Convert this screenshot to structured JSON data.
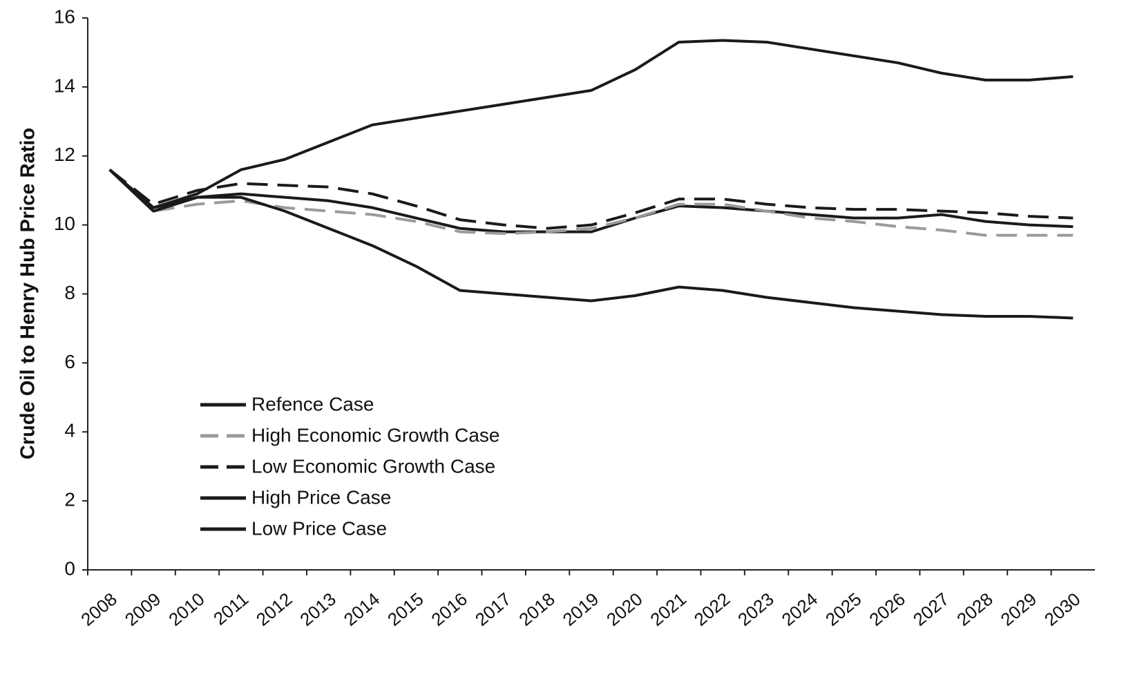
{
  "chart_data": {
    "type": "line",
    "y_label": "Crude Oil to Henry Hub Price Ratio",
    "categories": [
      "2008",
      "2009",
      "2010",
      "2011",
      "2012",
      "2013",
      "2014",
      "2015",
      "2016",
      "2017",
      "2018",
      "2019",
      "2020",
      "2021",
      "2022",
      "2023",
      "2024",
      "2025",
      "2026",
      "2027",
      "2028",
      "2029",
      "2030"
    ],
    "series": [
      {
        "name": "Refence Case",
        "color": "#1a1a1a",
        "dash": false,
        "values": [
          11.6,
          10.5,
          10.8,
          10.9,
          10.8,
          10.7,
          10.5,
          10.2,
          9.9,
          9.8,
          9.8,
          9.8,
          10.2,
          10.55,
          10.5,
          10.4,
          10.3,
          10.2,
          10.2,
          10.3,
          10.1,
          10.0,
          9.95
        ]
      },
      {
        "name": "High Economic Growth Case",
        "color": "#9a9a9a",
        "dash": true,
        "values": [
          11.6,
          10.4,
          10.6,
          10.7,
          10.5,
          10.4,
          10.3,
          10.1,
          9.8,
          9.75,
          9.8,
          9.9,
          10.2,
          10.6,
          10.6,
          10.4,
          10.2,
          10.1,
          9.95,
          9.85,
          9.7,
          9.7,
          9.7
        ]
      },
      {
        "name": "Low Economic Growth Case",
        "color": "#1a1a1a",
        "dash": true,
        "values": [
          11.6,
          10.6,
          11.0,
          11.2,
          11.15,
          11.1,
          10.9,
          10.55,
          10.15,
          10.0,
          9.9,
          10.0,
          10.35,
          10.75,
          10.75,
          10.6,
          10.5,
          10.45,
          10.45,
          10.4,
          10.35,
          10.25,
          10.2
        ]
      },
      {
        "name": "High Price Case",
        "color": "#1a1a1a",
        "dash": false,
        "values": [
          11.6,
          10.5,
          10.9,
          11.6,
          11.9,
          12.4,
          12.9,
          13.1,
          13.3,
          13.5,
          13.7,
          13.9,
          14.5,
          15.3,
          15.35,
          15.3,
          15.1,
          14.9,
          14.7,
          14.4,
          14.2,
          14.2,
          14.3
        ]
      },
      {
        "name": "Low Price Case",
        "color": "#1a1a1a",
        "dash": false,
        "values": [
          11.6,
          10.4,
          10.8,
          10.8,
          10.4,
          9.9,
          9.4,
          8.8,
          8.1,
          8.0,
          7.9,
          7.8,
          7.95,
          8.2,
          8.1,
          7.9,
          7.75,
          7.6,
          7.5,
          7.4,
          7.35,
          7.35,
          7.3
        ]
      }
    ],
    "ylim": [
      0,
      16
    ],
    "yticks": [
      0,
      2,
      4,
      6,
      8,
      10,
      12,
      14,
      16
    ],
    "grid": false,
    "legend": "lower left"
  }
}
